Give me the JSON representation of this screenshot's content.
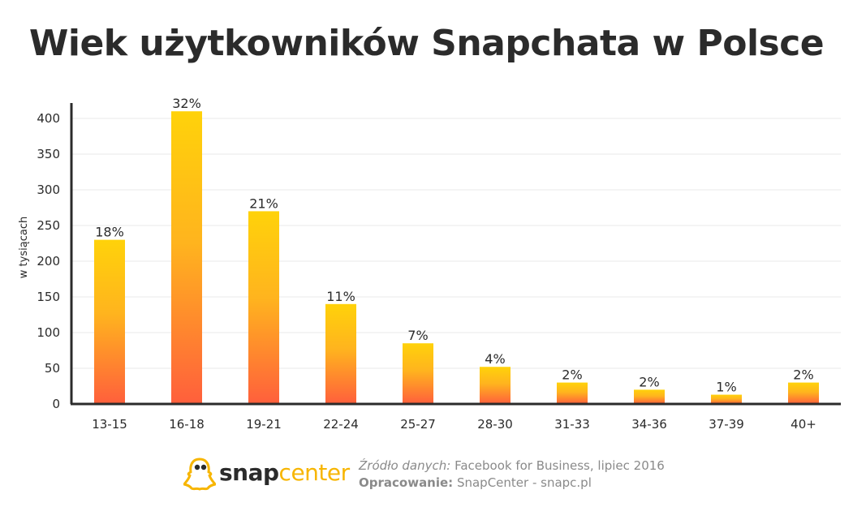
{
  "header": {
    "title": "Wiek użytkowników Snapchata w Polsce"
  },
  "chart_data": {
    "type": "bar",
    "title": "Wiek użytkowników Snapchata w Polsce",
    "xlabel": "",
    "ylabel": "w tysiącach",
    "categories": [
      "13-15",
      "16-18",
      "19-21",
      "22-24",
      "25-27",
      "28-30",
      "31-33",
      "34-36",
      "37-39",
      "40+"
    ],
    "values": [
      230,
      410,
      270,
      140,
      85,
      52,
      30,
      20,
      13,
      30
    ],
    "data_labels": [
      "18%",
      "32%",
      "21%",
      "11%",
      "7%",
      "4%",
      "2%",
      "2%",
      "1%",
      "2%"
    ],
    "yticks": [
      "0",
      "50",
      "100",
      "150",
      "200",
      "250",
      "300",
      "350",
      "400"
    ],
    "ylim": [
      0,
      420
    ],
    "grid": true,
    "legend": "none",
    "colors": {
      "bar_top": "#ffd20a",
      "bar_bottom": "#ff5f3c",
      "axis": "#2b2b2b",
      "grid": "#e8e8e8"
    }
  },
  "footer": {
    "logo_snap": "snap",
    "logo_center": "center",
    "source_label": "Źródło danych:",
    "source_value": " Facebook for Business, lipiec 2016",
    "author_label": "Opracowanie:",
    "author_value": " SnapCenter - snapc.pl",
    "brand_color": "#f7b500",
    "logo_icon": "ghost-icon"
  }
}
